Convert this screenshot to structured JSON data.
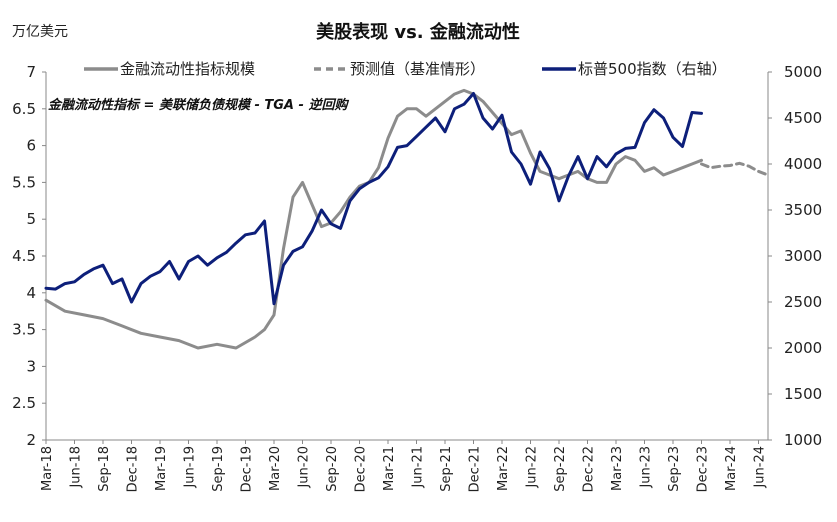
{
  "chart_data": {
    "type": "line",
    "title": "美股表现 vs. 金融流动性",
    "left_unit": "万亿美元",
    "annotation": "金融流动性指标 = 美联储负债规模 - TGA - 逆回购",
    "y_left": {
      "lim": [
        2,
        7
      ],
      "ticks": [
        "2",
        "2.5",
        "3",
        "3.5",
        "4",
        "4.5",
        "5",
        "5.5",
        "6",
        "6.5",
        "7"
      ]
    },
    "y_right": {
      "lim": [
        1000,
        5000
      ],
      "ticks": [
        "1000",
        "1500",
        "2000",
        "2500",
        "3000",
        "3500",
        "4000",
        "4500",
        "5000"
      ]
    },
    "x_ticks": [
      "Mar-18",
      "Jun-18",
      "Sep-18",
      "Dec-18",
      "Mar-19",
      "Jun-19",
      "Sep-19",
      "Dec-19",
      "Mar-20",
      "Jun-20",
      "Sep-20",
      "Dec-20",
      "Mar-21",
      "Jun-21",
      "Sep-21",
      "Dec-21",
      "Mar-22",
      "Jun-22",
      "Sep-22",
      "Dec-22",
      "Mar-23",
      "Jun-23",
      "Sep-23",
      "Dec-23",
      "Mar-24",
      "Jun-24"
    ],
    "x_range": [
      "2018-03",
      "2024-07"
    ],
    "legend_position": "top",
    "grid": false,
    "series": [
      {
        "name": "金融流动性指标规模",
        "axis": "left",
        "style": "solid",
        "color": "#8c8c8c",
        "x": [
          "2018-03",
          "2018-05",
          "2018-07",
          "2018-09",
          "2018-11",
          "2019-01",
          "2019-03",
          "2019-05",
          "2019-07",
          "2019-09",
          "2019-11",
          "2020-01",
          "2020-02",
          "2020-03",
          "2020-04",
          "2020-05",
          "2020-06",
          "2020-07",
          "2020-08",
          "2020-09",
          "2020-10",
          "2020-11",
          "2020-12",
          "2021-01",
          "2021-02",
          "2021-03",
          "2021-04",
          "2021-05",
          "2021-06",
          "2021-07",
          "2021-08",
          "2021-09",
          "2021-10",
          "2021-11",
          "2021-12",
          "2022-01",
          "2022-02",
          "2022-03",
          "2022-04",
          "2022-05",
          "2022-06",
          "2022-07",
          "2022-08",
          "2022-09",
          "2022-10",
          "2022-11",
          "2022-12",
          "2023-01",
          "2023-02",
          "2023-03",
          "2023-04",
          "2023-05",
          "2023-06",
          "2023-07",
          "2023-08",
          "2023-09",
          "2023-10",
          "2023-11",
          "2023-12"
        ],
        "values": [
          3.9,
          3.75,
          3.7,
          3.65,
          3.55,
          3.45,
          3.4,
          3.35,
          3.25,
          3.3,
          3.25,
          3.4,
          3.5,
          3.7,
          4.6,
          5.3,
          5.5,
          5.2,
          4.9,
          4.95,
          5.1,
          5.3,
          5.45,
          5.5,
          5.7,
          6.1,
          6.4,
          6.5,
          6.5,
          6.4,
          6.5,
          6.6,
          6.7,
          6.75,
          6.7,
          6.6,
          6.45,
          6.3,
          6.15,
          6.2,
          5.9,
          5.65,
          5.6,
          5.55,
          5.6,
          5.65,
          5.55,
          5.5,
          5.5,
          5.75,
          5.85,
          5.8,
          5.65,
          5.7,
          5.6,
          5.65,
          5.7,
          5.75,
          5.8
        ]
      },
      {
        "name": "预测值（基准情形）",
        "axis": "left",
        "style": "dashed",
        "color": "#8c8c8c",
        "x": [
          "2023-12",
          "2024-01",
          "2024-02",
          "2024-03",
          "2024-04",
          "2024-05",
          "2024-06",
          "2024-07"
        ],
        "values": [
          5.75,
          5.7,
          5.72,
          5.73,
          5.76,
          5.72,
          5.65,
          5.6
        ]
      },
      {
        "name": "标普500指数（右轴）",
        "axis": "right",
        "style": "solid",
        "color": "#0d1f7a",
        "x": [
          "2018-03",
          "2018-04",
          "2018-05",
          "2018-06",
          "2018-07",
          "2018-08",
          "2018-09",
          "2018-10",
          "2018-11",
          "2018-12",
          "2019-01",
          "2019-02",
          "2019-03",
          "2019-04",
          "2019-05",
          "2019-06",
          "2019-07",
          "2019-08",
          "2019-09",
          "2019-10",
          "2019-11",
          "2019-12",
          "2020-01",
          "2020-02",
          "2020-03",
          "2020-04",
          "2020-05",
          "2020-06",
          "2020-07",
          "2020-08",
          "2020-09",
          "2020-10",
          "2020-11",
          "2020-12",
          "2021-01",
          "2021-02",
          "2021-03",
          "2021-04",
          "2021-05",
          "2021-06",
          "2021-07",
          "2021-08",
          "2021-09",
          "2021-10",
          "2021-11",
          "2021-12",
          "2022-01",
          "2022-02",
          "2022-03",
          "2022-04",
          "2022-05",
          "2022-06",
          "2022-07",
          "2022-08",
          "2022-09",
          "2022-10",
          "2022-11",
          "2022-12",
          "2023-01",
          "2023-02",
          "2023-03",
          "2023-04",
          "2023-05",
          "2023-06",
          "2023-07",
          "2023-08",
          "2023-09",
          "2023-10",
          "2023-11",
          "2023-12"
        ],
        "values": [
          2650,
          2640,
          2700,
          2720,
          2800,
          2860,
          2900,
          2700,
          2750,
          2500,
          2700,
          2780,
          2830,
          2940,
          2750,
          2940,
          3000,
          2900,
          2980,
          3040,
          3140,
          3230,
          3250,
          3380,
          2480,
          2900,
          3050,
          3100,
          3270,
          3500,
          3350,
          3300,
          3600,
          3730,
          3800,
          3850,
          3970,
          4180,
          4200,
          4300,
          4400,
          4500,
          4350,
          4600,
          4650,
          4766,
          4500,
          4380,
          4530,
          4130,
          4000,
          3780,
          4130,
          3950,
          3600,
          3870,
          4080,
          3840,
          4080,
          3970,
          4110,
          4170,
          4180,
          4450,
          4590,
          4500,
          4290,
          4190,
          4560,
          4550
        ]
      }
    ]
  }
}
